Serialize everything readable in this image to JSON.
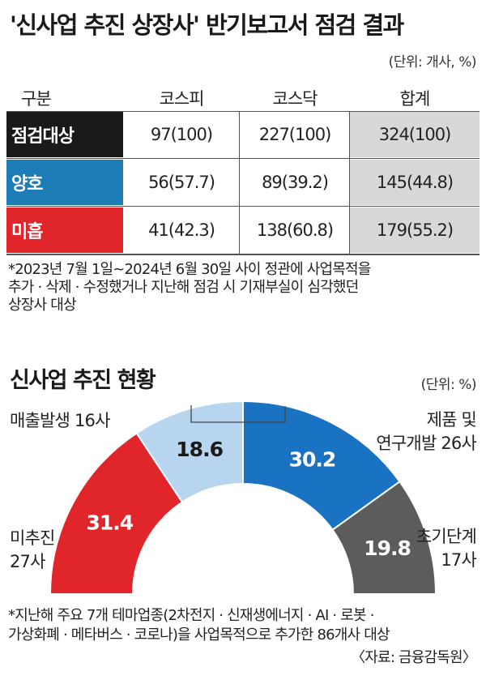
{
  "title": "'신사업 추진 상장사' 반기보고서 점검 결과",
  "table": {
    "unit": "(단위: 개사, %)",
    "headers": [
      "구분",
      "코스피",
      "코스닥",
      "합계"
    ],
    "rows": [
      {
        "label": "점검대상",
        "color": "#1a1a1a",
        "kospi": "97(100)",
        "kosdaq": "227(100)",
        "total": "324(100)"
      },
      {
        "label": "양호",
        "color": "#1d7bb5",
        "kospi": "56(57.7)",
        "kosdaq": "89(39.2)",
        "total": "145(44.8)"
      },
      {
        "label": "미흡",
        "color": "#e0262b",
        "kospi": "41(42.3)",
        "kosdaq": "138(60.8)",
        "total": "179(55.2)"
      }
    ],
    "note_lines": [
      "*2023년 7월 1일~2024년 6월 30일 사이 정관에 사업목적을",
      "추가 · 삭제 · 수정했거나 지난해 점검 시 기재부실이 심각했던",
      "상장사 대상"
    ]
  },
  "chart_data": {
    "type": "pie",
    "title": "신사업 추진 현황",
    "unit": "(단위: %)",
    "slices": [
      {
        "name": "미추진 27사",
        "value": 31.4,
        "color": "#e0262b",
        "text_color": "#ffffff"
      },
      {
        "name": "매출발생 16사",
        "value": 18.6,
        "color": "#b7d5ee",
        "text_color": "#1a1a1a"
      },
      {
        "name": "제품 및 연구개발 26사",
        "value": 30.2,
        "color": "#1a72c2",
        "text_color": "#ffffff"
      },
      {
        "name": "초기단계 17사",
        "value": 19.8,
        "color": "#5c5c5c",
        "text_color": "#ffffff"
      }
    ],
    "labels": {
      "l1": [
        "매출발생 16사"
      ],
      "l2": [
        "미추진",
        "27사"
      ],
      "l3": [
        "제품 및",
        "연구개발 26사"
      ],
      "l4": [
        "초기단계",
        "17사"
      ]
    },
    "note_lines": [
      "*지난해 주요 7개 테마업종(2차전지 · 신재생에너지 · AI · 로봇 ·",
      "가상화폐 · 메타버스 · 코로나)을 사업목적으로 추가한 86개사 대상"
    ],
    "source": "〈자료: 금융감독원〉"
  }
}
